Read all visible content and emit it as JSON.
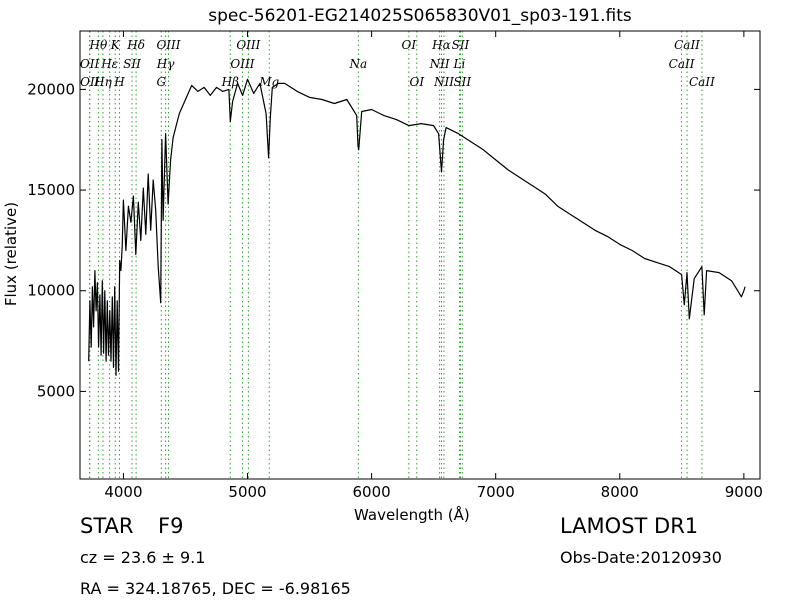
{
  "chart_data": {
    "type": "line",
    "title": "spec-56201-EG214025S065830V01_sp03-191.fits",
    "xlabel": "Wavelength (Å)",
    "ylabel": "Flux (relative)",
    "xlim": [
      3650,
      9130
    ],
    "ylim": [
      650,
      22900
    ],
    "xticks": [
      4000,
      5000,
      6000,
      7000,
      8000,
      9000
    ],
    "yticks": [
      5000,
      10000,
      15000,
      20000
    ],
    "grid": false,
    "series": [
      {
        "color": "#000000",
        "x": [
          3720,
          3730,
          3740,
          3750,
          3760,
          3770,
          3780,
          3790,
          3800,
          3810,
          3820,
          3830,
          3840,
          3850,
          3860,
          3870,
          3880,
          3890,
          3900,
          3910,
          3920,
          3930,
          3940,
          3950,
          3960,
          3970,
          3980,
          3990,
          4000,
          4020,
          4040,
          4060,
          4080,
          4100,
          4120,
          4140,
          4160,
          4180,
          4200,
          4220,
          4240,
          4260,
          4280,
          4300,
          4310,
          4320,
          4340,
          4360,
          4380,
          4400,
          4450,
          4500,
          4550,
          4600,
          4650,
          4700,
          4750,
          4800,
          4850,
          4861,
          4880,
          4920,
          4960,
          5000,
          5050,
          5100,
          5150,
          5170,
          5183,
          5200,
          5250,
          5300,
          5400,
          5500,
          5600,
          5700,
          5800,
          5850,
          5880,
          5890,
          5896,
          5920,
          6000,
          6100,
          6200,
          6300,
          6400,
          6500,
          6540,
          6563,
          6580,
          6600,
          6700,
          6800,
          6900,
          7000,
          7100,
          7200,
          7300,
          7400,
          7500,
          7600,
          7700,
          7800,
          7900,
          8000,
          8100,
          8200,
          8300,
          8400,
          8450,
          8498,
          8520,
          8542,
          8560,
          8600,
          8662,
          8680,
          8700,
          8800,
          8900,
          8950,
          8980,
          9000,
          9010
        ],
        "y": [
          6500,
          9500,
          7200,
          10200,
          8200,
          11000,
          9000,
          10400,
          7200,
          9800,
          6800,
          10500,
          6900,
          10000,
          6500,
          9500,
          6800,
          9000,
          6500,
          9700,
          6200,
          10200,
          5800,
          9500,
          6000,
          11500,
          11000,
          12200,
          14500,
          12000,
          14200,
          13400,
          14700,
          11800,
          14400,
          12500,
          15100,
          12800,
          15800,
          13000,
          15500,
          14000,
          11200,
          9400,
          17500,
          13500,
          17800,
          14300,
          16500,
          17600,
          18800,
          19500,
          20200,
          19900,
          20100,
          19700,
          20100,
          19900,
          20000,
          18400,
          19400,
          20300,
          19700,
          20500,
          19800,
          20300,
          18800,
          16600,
          18500,
          20100,
          20300,
          20300,
          19900,
          19600,
          19500,
          19300,
          19500,
          19000,
          18700,
          17200,
          17000,
          18900,
          19000,
          18700,
          18500,
          18200,
          18300,
          18200,
          17800,
          15900,
          17500,
          18100,
          17800,
          17400,
          17000,
          16500,
          16000,
          15600,
          15200,
          14800,
          14200,
          13800,
          13400,
          13000,
          12700,
          12300,
          12000,
          11600,
          11400,
          11200,
          11000,
          10800,
          9300,
          10900,
          8600,
          10600,
          11200,
          8800,
          11000,
          10900,
          10500,
          10000,
          9700,
          10000,
          10200
        ]
      }
    ],
    "line_markers": [
      {
        "label": "Hθ",
        "x": 3798,
        "row": 1
      },
      {
        "label": "OII",
        "x": 3727,
        "row": 2
      },
      {
        "label": "OII",
        "x": 3729,
        "row": 3
      },
      {
        "label": "K",
        "x": 3934,
        "row": 1
      },
      {
        "label": "Hε",
        "x": 3889,
        "row": 2
      },
      {
        "label": "Hη",
        "x": 3835,
        "row": 3
      },
      {
        "label": "SII",
        "x": 4069,
        "row": 2
      },
      {
        "label": "H",
        "x": 3968,
        "row": 3
      },
      {
        "label": "Hδ",
        "x": 4102,
        "row": 1
      },
      {
        "label": "OIII",
        "x": 4363,
        "row": 1
      },
      {
        "label": "Hγ",
        "x": 4340,
        "row": 2
      },
      {
        "label": "G",
        "x": 4305,
        "row": 3
      },
      {
        "label": "OIII",
        "x": 5007,
        "row": 1
      },
      {
        "label": "OIII",
        "x": 4959,
        "row": 2
      },
      {
        "label": "Hβ",
        "x": 4861,
        "row": 3
      },
      {
        "label": "Mg",
        "x": 5175,
        "row": 3
      },
      {
        "label": "Na",
        "x": 5893,
        "row": 2
      },
      {
        "label": "OI",
        "x": 6300,
        "row": 1
      },
      {
        "label": "OI",
        "x": 6364,
        "row": 3
      },
      {
        "label": "Hα",
        "x": 6563,
        "row": 1
      },
      {
        "label": "SII",
        "x": 6716,
        "row": 1
      },
      {
        "label": "NII",
        "x": 6548,
        "row": 2
      },
      {
        "label": "Li",
        "x": 6708,
        "row": 2
      },
      {
        "label": "NII",
        "x": 6583,
        "row": 3
      },
      {
        "label": "SII",
        "x": 6731,
        "row": 3
      },
      {
        "label": "CaII",
        "x": 8542,
        "row": 1
      },
      {
        "label": "CaII",
        "x": 8498,
        "row": 2
      },
      {
        "label": "CaII",
        "x": 8662,
        "row": 3
      }
    ]
  },
  "info": {
    "class_label": "STAR",
    "subclass_label": "F9",
    "survey": "LAMOST DR1",
    "cz_text": "cz = 23.6  ± 9.1",
    "obs_date": "Obs-Date:20120930",
    "coords": "RA = 324.18765, DEC = -6.98165"
  }
}
